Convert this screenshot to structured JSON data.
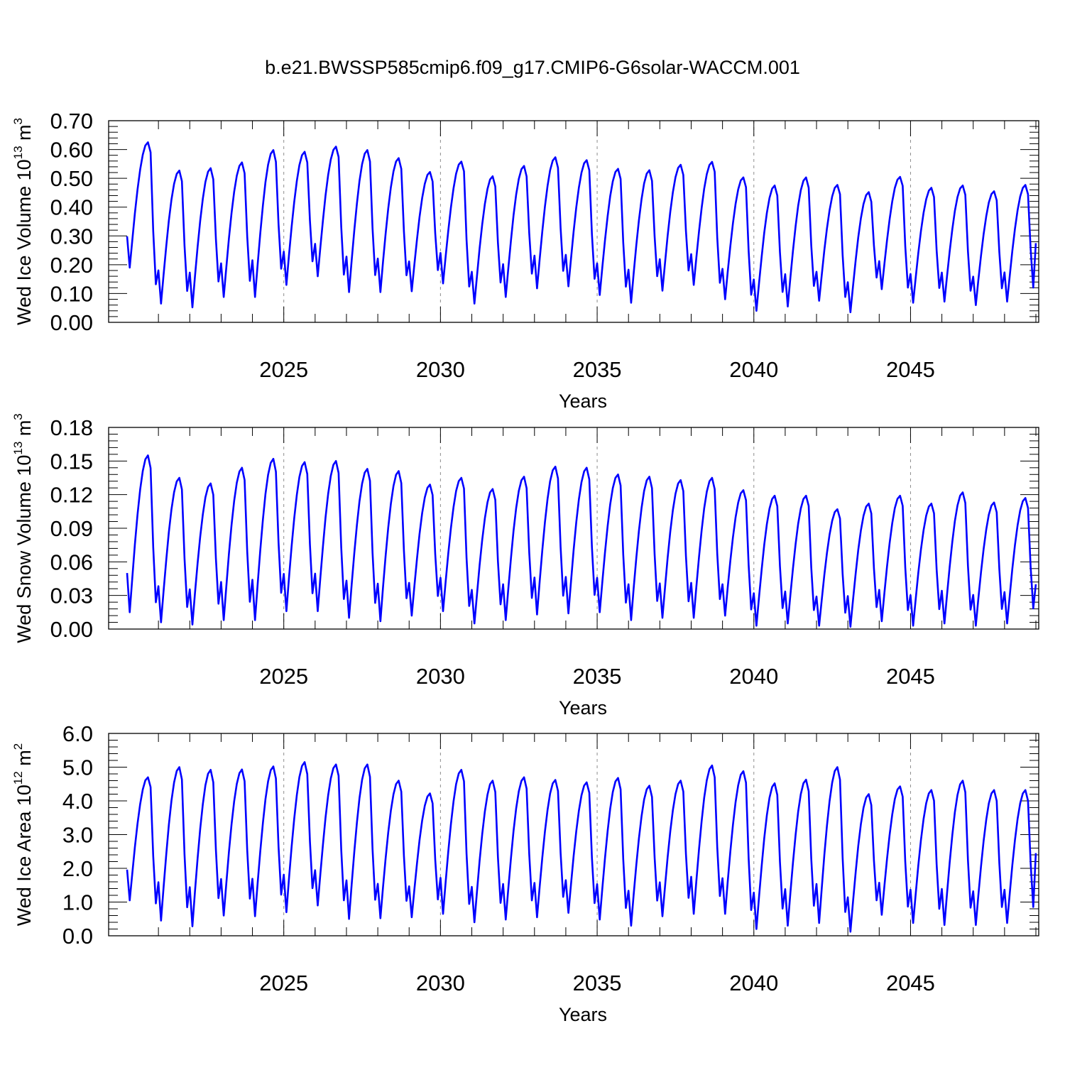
{
  "figure_title": "b.e21.BWSSP585cmip6.f09_g17.CMIP6-G6solar-WACCM.001",
  "colors": {
    "series": "#0000ff",
    "axis": "#000000",
    "grid": "#8c8c8c",
    "background": "#ffffff"
  },
  "chart_data": [
    {
      "type": "line",
      "ylabel": {
        "main": "Wed Ice Volume 10",
        "exponent": "13",
        "unit": " m",
        "unit_exponent": "3"
      },
      "xlabel": "Years",
      "xlim": [
        2020.0,
        2049.0
      ],
      "ylim": [
        0.0,
        0.7
      ],
      "yticks": [
        "0.00",
        "0.10",
        "0.20",
        "0.30",
        "0.40",
        "0.50",
        "0.60",
        "0.70"
      ],
      "ytick_values": [
        0.0,
        0.1,
        0.2,
        0.3,
        0.4,
        0.5,
        0.6,
        0.7
      ],
      "xticks": [
        "2025",
        "2030",
        "2035",
        "2040",
        "2045"
      ],
      "xtick_values": [
        2025,
        2030,
        2035,
        2040,
        2045
      ],
      "grid": "dashed vertical lines at labeled years",
      "series": [
        {
          "start": 2020.0,
          "step": 0.08333,
          "peaks": [
            0.625,
            0.527,
            0.535,
            0.555,
            0.598,
            0.592,
            0.61,
            0.598,
            0.57,
            0.522,
            0.558,
            0.507,
            0.543,
            0.573,
            0.563,
            0.533,
            0.528,
            0.547,
            0.557,
            0.503,
            0.475,
            0.503,
            0.477,
            0.452,
            0.505,
            0.467,
            0.475,
            0.455,
            0.477
          ],
          "troughs": [
            0.19,
            0.065,
            0.052,
            0.088,
            0.088,
            0.13,
            0.16,
            0.105,
            0.105,
            0.108,
            0.135,
            0.065,
            0.088,
            0.118,
            0.125,
            0.095,
            0.068,
            0.11,
            0.13,
            0.08,
            0.04,
            0.055,
            0.075,
            0.035,
            0.115,
            0.068,
            0.072,
            0.06,
            0.072
          ],
          "end_value": 0.275
        }
      ]
    },
    {
      "type": "line",
      "ylabel": {
        "main": "Wed Snow Volume 10",
        "exponent": "13",
        "unit": " m",
        "unit_exponent": "3"
      },
      "xlabel": "Years",
      "xlim": [
        2020.0,
        2049.0
      ],
      "ylim": [
        0.0,
        0.18
      ],
      "yticks": [
        "0.00",
        "0.03",
        "0.06",
        "0.09",
        "0.12",
        "0.15",
        "0.18"
      ],
      "ytick_values": [
        0.0,
        0.03,
        0.06,
        0.09,
        0.12,
        0.15,
        0.18
      ],
      "xticks": [
        "2025",
        "2030",
        "2035",
        "2040",
        "2045"
      ],
      "xtick_values": [
        2025,
        2030,
        2035,
        2040,
        2045
      ],
      "grid": "dashed vertical lines at labeled years",
      "series": [
        {
          "start": 2020.0,
          "step": 0.08333,
          "peaks": [
            0.155,
            0.135,
            0.13,
            0.144,
            0.152,
            0.149,
            0.15,
            0.143,
            0.141,
            0.129,
            0.135,
            0.125,
            0.136,
            0.145,
            0.144,
            0.138,
            0.136,
            0.133,
            0.135,
            0.124,
            0.119,
            0.119,
            0.107,
            0.112,
            0.119,
            0.112,
            0.122,
            0.113,
            0.117
          ],
          "troughs": [
            0.015,
            0.006,
            0.004,
            0.008,
            0.008,
            0.016,
            0.016,
            0.01,
            0.007,
            0.012,
            0.016,
            0.005,
            0.008,
            0.013,
            0.014,
            0.015,
            0.008,
            0.01,
            0.01,
            0.012,
            0.003,
            0.005,
            0.003,
            0.002,
            0.007,
            0.003,
            0.005,
            0.003,
            0.005
          ],
          "end_value": 0.04
        }
      ]
    },
    {
      "type": "line",
      "ylabel": {
        "main": "Wed Ice Area 10",
        "exponent": "12",
        "unit": " m",
        "unit_exponent": "2"
      },
      "xlabel": "Years",
      "xlim": [
        2020.0,
        2049.0
      ],
      "ylim": [
        0.0,
        6.0
      ],
      "yticks": [
        "0.0",
        "1.0",
        "2.0",
        "3.0",
        "4.0",
        "5.0",
        "6.0"
      ],
      "ytick_values": [
        0.0,
        1.0,
        2.0,
        3.0,
        4.0,
        5.0,
        6.0
      ],
      "xticks": [
        "2025",
        "2030",
        "2035",
        "2040",
        "2045"
      ],
      "xtick_values": [
        2025,
        2030,
        2035,
        2040,
        2045
      ],
      "grid": "dashed vertical lines at labeled years",
      "series": [
        {
          "start": 2020.0,
          "step": 0.08333,
          "peaks": [
            4.7,
            5.0,
            4.92,
            4.93,
            5.02,
            5.15,
            5.08,
            5.08,
            4.6,
            4.22,
            4.92,
            4.6,
            4.7,
            4.62,
            4.55,
            4.68,
            4.45,
            4.6,
            5.05,
            4.88,
            4.52,
            4.63,
            5.0,
            4.2,
            4.43,
            4.32,
            4.6,
            4.32,
            4.32
          ],
          "troughs": [
            1.05,
            0.45,
            0.28,
            0.6,
            0.58,
            0.7,
            0.9,
            0.5,
            0.52,
            0.55,
            0.65,
            0.4,
            0.48,
            0.55,
            0.68,
            0.48,
            0.3,
            0.58,
            0.65,
            0.65,
            0.2,
            0.3,
            0.38,
            0.12,
            0.62,
            0.38,
            0.32,
            0.32,
            0.38
          ],
          "end_value": 2.45
        }
      ]
    }
  ]
}
